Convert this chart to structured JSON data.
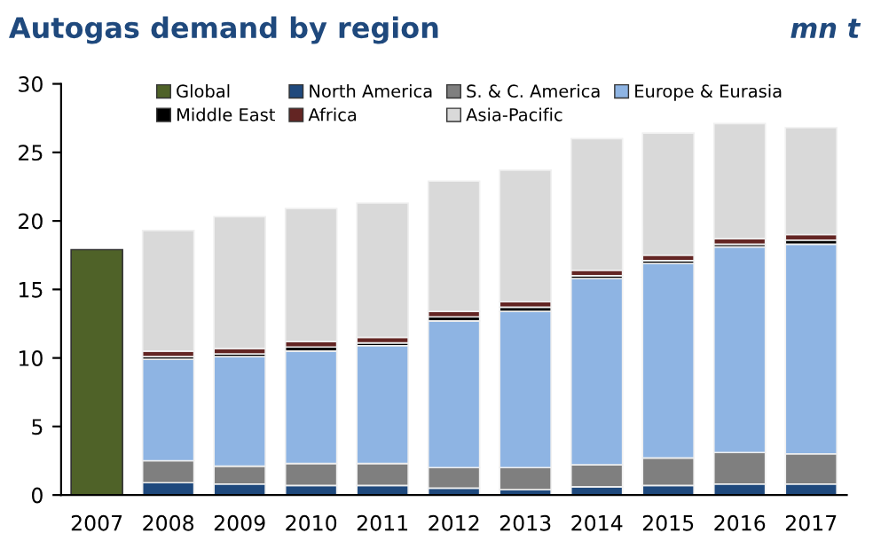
{
  "chart_data": {
    "type": "bar",
    "title": "Autogas demand by region",
    "annotations": [
      "mn t"
    ],
    "categories": [
      "2007",
      "2008",
      "2009",
      "2010",
      "2011",
      "2012",
      "2013",
      "2014",
      "2015",
      "2016",
      "2017"
    ],
    "stacked": true,
    "series": [
      {
        "name": "Global",
        "color": "#4f6228",
        "values": [
          17.9,
          null,
          null,
          null,
          null,
          null,
          null,
          null,
          null,
          null,
          null
        ]
      },
      {
        "name": "North America",
        "color": "#1f497d",
        "values": [
          null,
          0.9,
          0.8,
          0.7,
          0.7,
          0.5,
          0.4,
          0.6,
          0.7,
          0.8,
          0.8
        ]
      },
      {
        "name": "S. & C. America",
        "color": "#7f7f7f",
        "values": [
          null,
          1.6,
          1.3,
          1.6,
          1.6,
          1.5,
          1.6,
          1.6,
          2.0,
          2.3,
          2.2
        ]
      },
      {
        "name": "Europe & Eurasia",
        "color": "#8eb4e3",
        "values": [
          null,
          7.4,
          8.0,
          8.2,
          8.6,
          10.7,
          11.4,
          13.6,
          14.2,
          15.0,
          15.3
        ]
      },
      {
        "name": "Middle East",
        "color": "#000000",
        "values": [
          null,
          0.2,
          0.2,
          0.3,
          0.2,
          0.3,
          0.3,
          0.2,
          0.2,
          0.2,
          0.3
        ]
      },
      {
        "name": "Africa",
        "color": "#632523",
        "values": [
          null,
          0.4,
          0.4,
          0.4,
          0.4,
          0.4,
          0.4,
          0.4,
          0.4,
          0.4,
          0.4
        ]
      },
      {
        "name": "Asia-Pacific",
        "color": "#d9d9d9",
        "values": [
          null,
          8.8,
          9.6,
          9.7,
          9.8,
          9.5,
          9.6,
          9.6,
          8.9,
          8.4,
          7.8
        ]
      }
    ],
    "ylim": [
      0,
      30
    ],
    "yticks": [
      0,
      5,
      10,
      15,
      20,
      25,
      30
    ],
    "grid": false,
    "legend": "top"
  }
}
